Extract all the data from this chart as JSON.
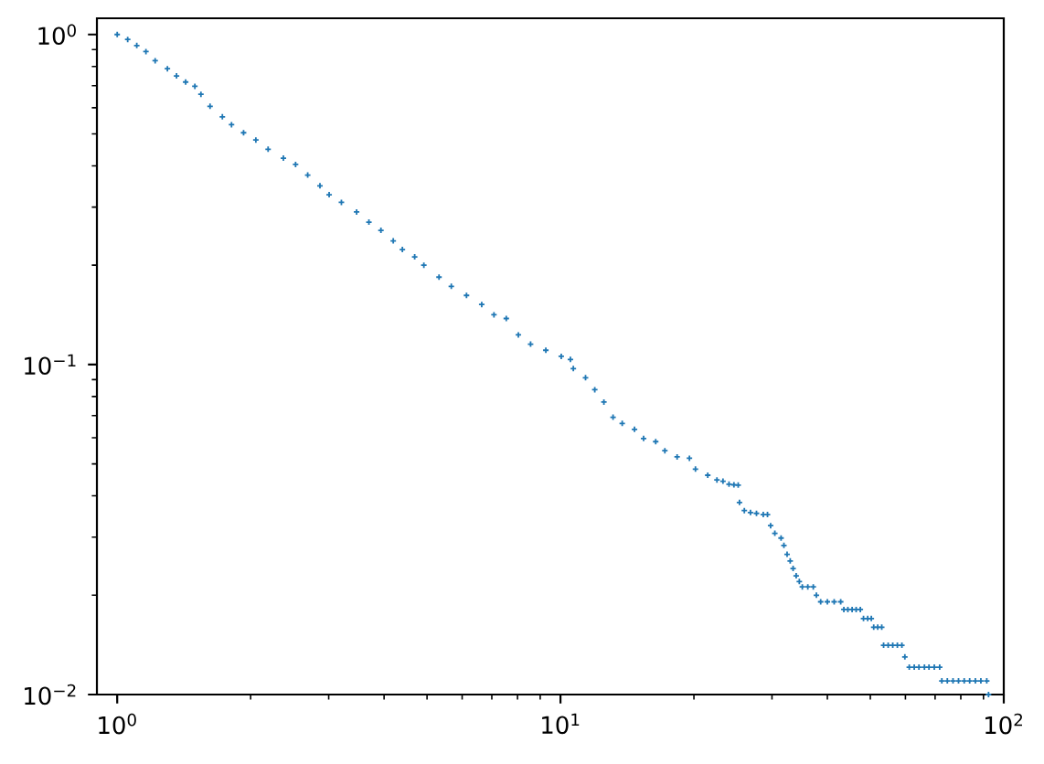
{
  "chart_data": {
    "type": "scatter",
    "x": [
      1.0,
      1.056,
      1.107,
      1.161,
      1.218,
      1.298,
      1.361,
      1.427,
      1.497,
      1.545,
      1.62,
      1.727,
      1.811,
      1.928,
      2.055,
      2.19,
      2.371,
      2.526,
      2.69,
      2.867,
      3.007,
      3.205,
      3.468,
      3.697,
      3.936,
      4.195,
      4.399,
      4.689,
      4.918,
      5.321,
      5.672,
      6.138,
      6.643,
      7.079,
      7.547,
      8.035,
      8.562,
      9.267,
      10.04,
      10.53,
      10.69,
      11.39,
      11.95,
      12.53,
      13.14,
      13.78,
      14.69,
      15.4,
      16.4,
      17.2,
      18.33,
      19.54,
      20.16,
      21.49,
      22.54,
      23.26,
      24.0,
      24.62,
      25.17,
      25.34,
      25.99,
      26.83,
      27.68,
      28.67,
      29.31,
      29.79,
      30.45,
      31.45,
      31.92,
      32.45,
      32.98,
      33.48,
      34.02,
      34.58,
      35.12,
      36.14,
      37.18,
      37.79,
      38.64,
      40.0,
      41.44,
      42.87,
      43.58,
      44.5,
      45.49,
      46.45,
      47.47,
      48.26,
      49.32,
      50.26,
      50.89,
      51.96,
      53.06,
      53.57,
      54.86,
      56.18,
      57.54,
      58.91,
      59.83,
      61.21,
      62.82,
      64.37,
      66.24,
      67.82,
      69.72,
      71.69,
      72.5,
      74.6,
      76.84,
      79.07,
      81.43,
      83.77,
      86.29,
      88.79,
      91.55,
      92.4
    ],
    "values": [
      1.0,
      0.966,
      0.926,
      0.888,
      0.833,
      0.788,
      0.749,
      0.718,
      0.697,
      0.659,
      0.606,
      0.563,
      0.533,
      0.504,
      0.479,
      0.449,
      0.422,
      0.404,
      0.375,
      0.348,
      0.327,
      0.31,
      0.29,
      0.27,
      0.255,
      0.237,
      0.223,
      0.212,
      0.2,
      0.184,
      0.1726,
      0.162,
      0.152,
      0.1415,
      0.1379,
      0.123,
      0.1153,
      0.1105,
      0.1059,
      0.1036,
      0.0972,
      0.0912,
      0.0839,
      0.077,
      0.0692,
      0.0663,
      0.0636,
      0.0597,
      0.0584,
      0.0548,
      0.0525,
      0.052,
      0.0482,
      0.0462,
      0.0447,
      0.0443,
      0.0434,
      0.0432,
      0.0431,
      0.0382,
      0.0361,
      0.0356,
      0.0354,
      0.0351,
      0.0351,
      0.0325,
      0.0308,
      0.0298,
      0.0283,
      0.0266,
      0.0254,
      0.0241,
      0.0229,
      0.022,
      0.0212,
      0.0212,
      0.0212,
      0.02,
      0.0191,
      0.0191,
      0.0191,
      0.0191,
      0.0181,
      0.0181,
      0.0181,
      0.0181,
      0.0181,
      0.017,
      0.017,
      0.017,
      0.016,
      0.016,
      0.016,
      0.0141,
      0.0141,
      0.0141,
      0.0141,
      0.0141,
      0.013,
      0.0121,
      0.0121,
      0.0121,
      0.0121,
      0.0121,
      0.0121,
      0.0121,
      0.011,
      0.011,
      0.011,
      0.011,
      0.011,
      0.011,
      0.011,
      0.011,
      0.011,
      0.01
    ],
    "color": "#1f77b4",
    "marker": "cross",
    "log": "xy",
    "xlim": [
      0.9,
      100
    ],
    "ylim": [
      0.01,
      1.12
    ],
    "xticks": [
      {
        "value": 1,
        "label": "10$^{0}$"
      },
      {
        "value": 10,
        "label": "10$^{1}$"
      },
      {
        "value": 100,
        "label": "10$^{2}$"
      }
    ],
    "yticks": [
      {
        "value": 0.01,
        "label": "10$^{−2}$"
      },
      {
        "value": 0.1,
        "label": "10$^{−1}$"
      },
      {
        "value": 1,
        "label": "10$^{0}$"
      }
    ]
  }
}
